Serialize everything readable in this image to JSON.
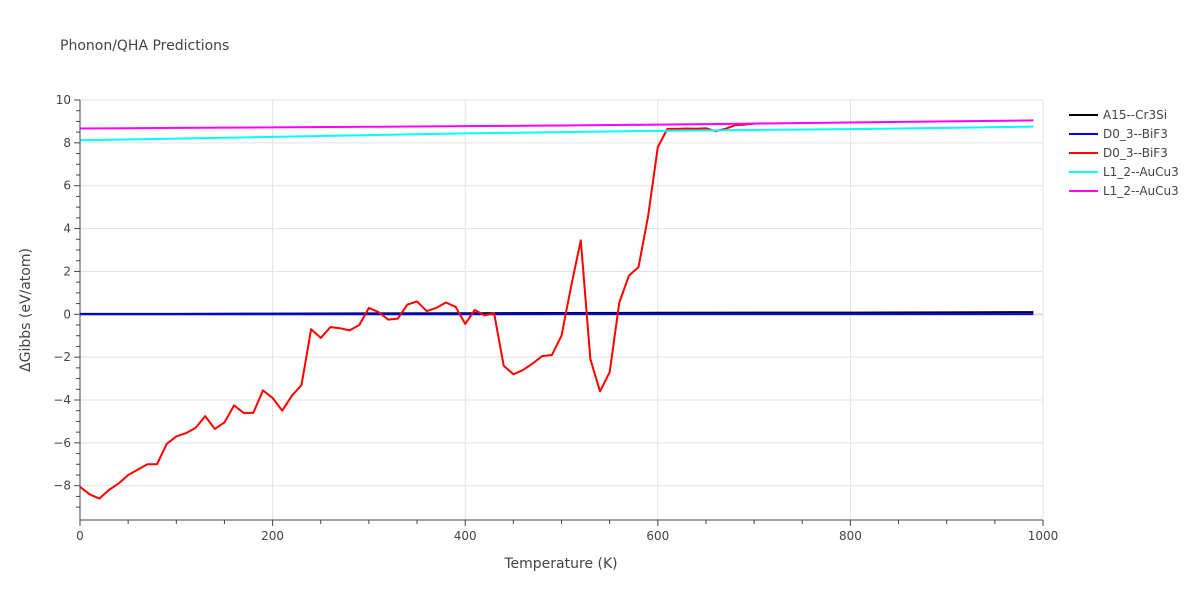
{
  "chart_data": {
    "type": "line",
    "title": "Phonon/QHA Predictions",
    "xlabel": "Temperature (K)",
    "ylabel": "ΔGibbs (eV/atom)",
    "xlim": [
      0,
      1000
    ],
    "ylim": [
      -9.6,
      10
    ],
    "xticks": [
      0,
      200,
      400,
      600,
      800,
      1000
    ],
    "yticks": [
      -8,
      -6,
      -4,
      -2,
      0,
      2,
      4,
      6,
      8,
      10
    ],
    "grid": true,
    "legend_position": "top-right",
    "series": [
      {
        "name": "A15--Cr3Si",
        "color": "#000000",
        "x": [
          0,
          100,
          200,
          300,
          400,
          500,
          600,
          700,
          800,
          900,
          990
        ],
        "y": [
          0.02,
          0.02,
          0.03,
          0.04,
          0.05,
          0.06,
          0.07,
          0.08,
          0.08,
          0.09,
          0.1
        ]
      },
      {
        "name": "D0_3--BiF3",
        "color": "#0000ff",
        "x": [
          0,
          100,
          200,
          300,
          400,
          500,
          600,
          700,
          800,
          900,
          990
        ],
        "y": [
          0.0,
          0.0,
          0.0,
          0.0,
          0.0,
          0.01,
          0.01,
          0.01,
          0.01,
          0.01,
          0.01
        ]
      },
      {
        "name": "D0_3--BiF3",
        "color": "#ff0000",
        "x": [
          0,
          10,
          20,
          30,
          40,
          50,
          60,
          70,
          80,
          90,
          100,
          110,
          120,
          130,
          140,
          150,
          160,
          170,
          180,
          190,
          200,
          210,
          220,
          230,
          240,
          250,
          260,
          270,
          280,
          290,
          300,
          310,
          320,
          330,
          340,
          350,
          360,
          370,
          380,
          390,
          400,
          410,
          420,
          430,
          440,
          450,
          460,
          470,
          480,
          490,
          500,
          510,
          520,
          530,
          540,
          550,
          560,
          570,
          580,
          590,
          600,
          610,
          620,
          630,
          640,
          650,
          660,
          670,
          680,
          690,
          700
        ],
        "y": [
          -8.05,
          -8.4,
          -8.6,
          -8.2,
          -7.9,
          -7.5,
          -7.25,
          -7.0,
          -7.0,
          -6.05,
          -5.7,
          -5.55,
          -5.3,
          -4.75,
          -5.35,
          -5.05,
          -4.25,
          -4.6,
          -4.6,
          -3.55,
          -3.9,
          -4.5,
          -3.8,
          -3.3,
          -0.7,
          -1.1,
          -0.6,
          -0.65,
          -0.75,
          -0.5,
          0.3,
          0.1,
          -0.25,
          -0.2,
          0.45,
          0.6,
          0.15,
          0.3,
          0.55,
          0.35,
          -0.45,
          0.2,
          -0.05,
          0.05,
          -2.4,
          -2.8,
          -2.6,
          -2.3,
          -1.95,
          -1.9,
          -1.0,
          1.3,
          3.45,
          -2.1,
          -3.6,
          -2.7,
          0.55,
          1.8,
          2.2,
          4.6,
          7.8,
          8.65,
          8.65,
          8.67,
          8.66,
          8.68,
          8.55,
          8.65,
          8.82,
          8.85,
          8.9
        ]
      },
      {
        "name": "L1_2--AuCu3",
        "color": "#00ffff",
        "x": [
          0,
          100,
          200,
          300,
          400,
          500,
          600,
          700,
          800,
          900,
          990
        ],
        "y": [
          8.12,
          8.2,
          8.28,
          8.36,
          8.44,
          8.5,
          8.56,
          8.6,
          8.64,
          8.7,
          8.76
        ]
      },
      {
        "name": "L1_2--AuCu3",
        "color": "#ff00ff",
        "x": [
          0,
          100,
          200,
          300,
          400,
          500,
          600,
          700,
          800,
          900,
          990
        ],
        "y": [
          8.67,
          8.7,
          8.72,
          8.75,
          8.78,
          8.81,
          8.85,
          8.9,
          8.95,
          9.0,
          9.05
        ]
      }
    ]
  }
}
